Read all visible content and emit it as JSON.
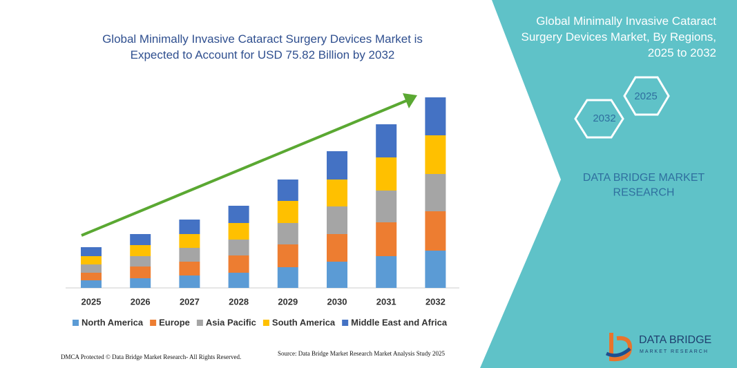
{
  "chart_data": {
    "type": "stacked-bar",
    "title": "Global Minimally Invasive Cataract Surgery Devices Market is Expected to Account for USD 75.82 Billion by 2032",
    "categories": [
      "2025",
      "2026",
      "2027",
      "2028",
      "2029",
      "2030",
      "2031",
      "2032"
    ],
    "series": [
      {
        "name": "North America",
        "color": "#5b9bd5",
        "values": [
          11,
          14,
          18,
          22,
          30,
          38,
          46,
          54
        ]
      },
      {
        "name": "Europe",
        "color": "#ed7d31",
        "values": [
          11,
          17,
          20,
          25,
          33,
          40,
          49,
          57
        ]
      },
      {
        "name": "Asia Pacific",
        "color": "#a5a5a5",
        "values": [
          12,
          15,
          20,
          23,
          31,
          40,
          46,
          54
        ]
      },
      {
        "name": "South America",
        "color": "#ffc000",
        "values": [
          12,
          16,
          20,
          24,
          32,
          39,
          48,
          56
        ]
      },
      {
        "name": "Middle East and Africa",
        "color": "#4472c4",
        "values": [
          13,
          16,
          21,
          25,
          31,
          41,
          48,
          55
        ]
      }
    ],
    "legend": "bottom"
  },
  "panel": {
    "title": "Global Minimally Invasive Cataract Surgery Devices Market, By Regions, 2025 to 2032",
    "hex_start": "2025",
    "hex_end": "2032",
    "brand": "DATA BRIDGE MARKET RESEARCH"
  },
  "footer": {
    "left": "DMCA Protected © Data Bridge Market Research- All Rights Reserved.",
    "source": "Source: Data Bridge Market Research Market Analysis Study 2025"
  },
  "logo": {
    "name": "DATA BRIDGE",
    "tagline": "MARKET RESEARCH"
  }
}
